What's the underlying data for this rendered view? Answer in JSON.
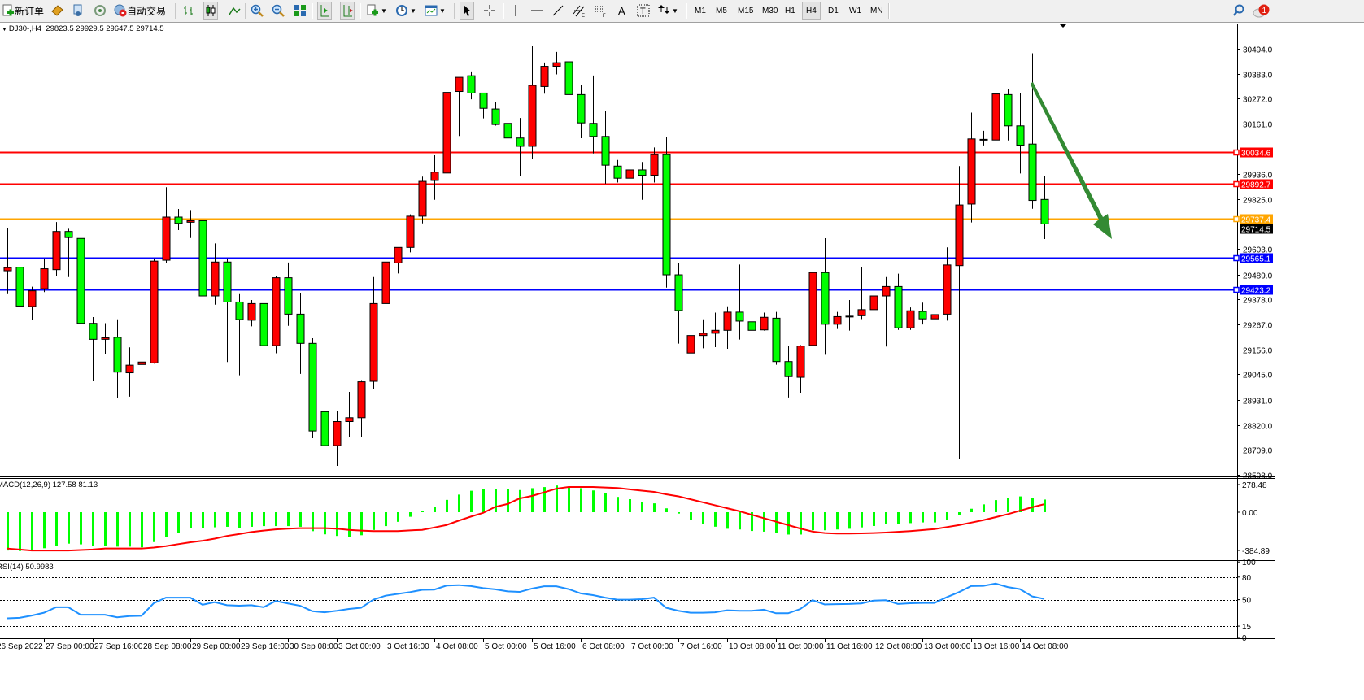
{
  "toolbar": {
    "new_order_label": "新订单",
    "auto_trading_label": "自动交易",
    "timeframes": [
      "M1",
      "M5",
      "M15",
      "M30",
      "H1",
      "H4",
      "D1",
      "W1",
      "MN"
    ],
    "active_timeframe": "H4",
    "notification_count": "1",
    "icons": [
      "new-order-icon",
      "market-watch-icon",
      "navigator-icon",
      "signals-icon",
      "auto-trading-icon",
      "bar-chart-icon",
      "candlestick-icon",
      "line-chart-icon",
      "zoom-in-icon",
      "zoom-out-icon",
      "tile-windows-icon",
      "auto-scroll-icon",
      "chart-shift-icon",
      "indicators-icon",
      "periods-icon",
      "templates-icon",
      "cursor-icon",
      "crosshair-icon",
      "vertical-line-icon",
      "horizontal-line-icon",
      "trendline-icon",
      "equidistant-channel-icon",
      "fibonacci-icon",
      "text-icon",
      "text-label-icon",
      "arrows-icon",
      "search-icon",
      "notification-icon"
    ]
  },
  "header": {
    "symbol": "DJ30-,H4",
    "ohlc": "29823.5 29929.5 29647.5 29714.5"
  },
  "indicators": {
    "macd_title": "MACD(12,26,9) 127.58 81.13",
    "rsi_title": "RSI(14) 50.9983"
  },
  "colors": {
    "bull": "#ff0000",
    "bear": "#00ff00",
    "macd_hist": "#00ff00",
    "macd_signal": "#ff0000",
    "rsi": "#1e90ff",
    "arrow": "#338a33"
  },
  "chart_data": [
    {
      "type": "candlestick",
      "symbol": "DJ30-",
      "timeframe": "H4",
      "ohlc_order": [
        "open",
        "high",
        "low",
        "close"
      ],
      "ylim": [
        28598.0,
        30494.0
      ],
      "y_ticks": [
        "30494.0",
        "30383.0",
        "30272.0",
        "30161.0",
        "29936.0",
        "29825.0",
        "29603.0",
        "29489.0",
        "29378.0",
        "29267.0",
        "29156.0",
        "29045.0",
        "28931.0",
        "28820.0",
        "28709.0",
        "28598.0"
      ],
      "time_labels": [
        "26 Sep 2022",
        "27 Sep 00:00",
        "27 Sep 16:00",
        "28 Sep 08:00",
        "29 Sep 00:00",
        "29 Sep 16:00",
        "30 Sep 08:00",
        "3 Oct 00:00",
        "3 Oct 16:00",
        "4 Oct 08:00",
        "5 Oct 00:00",
        "5 Oct 16:00",
        "6 Oct 08:00",
        "7 Oct 00:00",
        "7 Oct 16:00",
        "10 Oct 08:00",
        "11 Oct 00:00",
        "11 Oct 16:00",
        "12 Oct 08:00",
        "13 Oct 00:00",
        "13 Oct 16:00",
        "14 Oct 08:00"
      ],
      "levels": [
        {
          "label": "30034.6",
          "price": 30034.6,
          "color": "#ff0000"
        },
        {
          "label": "29892.7",
          "price": 29892.7,
          "color": "#ff0000"
        },
        {
          "label": "29737.4",
          "price": 29737.4,
          "color": "#ffa500"
        },
        {
          "label": "29565.1",
          "price": 29565.1,
          "color": "#0000ff"
        },
        {
          "label": "29423.2",
          "price": 29423.2,
          "color": "#0000ff"
        }
      ],
      "bid": {
        "label": "29714.5",
        "price": 29714.5,
        "color": "#000000"
      },
      "candles": [
        [
          29506,
          29696,
          29402,
          29520
        ],
        [
          29522,
          29534,
          29220,
          29349
        ],
        [
          29347,
          29435,
          29288,
          29417
        ],
        [
          29426,
          29561,
          29411,
          29515
        ],
        [
          29511,
          29723,
          29484,
          29681
        ],
        [
          29681,
          29693,
          29478,
          29654
        ],
        [
          29650,
          29723,
          29272,
          29272
        ],
        [
          29272,
          29300,
          29014,
          29201
        ],
        [
          29201,
          29273,
          29135,
          29208
        ],
        [
          29210,
          29290,
          28940,
          29055
        ],
        [
          29052,
          29165,
          28946,
          29086
        ],
        [
          29089,
          29273,
          28881,
          29100
        ],
        [
          29096,
          29561,
          29093,
          29549
        ],
        [
          29553,
          29878,
          29541,
          29745
        ],
        [
          29745,
          29781,
          29687,
          29717
        ],
        [
          29722,
          29776,
          29652,
          29729
        ],
        [
          29729,
          29776,
          29342,
          29394
        ],
        [
          29394,
          29628,
          29355,
          29545
        ],
        [
          29545,
          29561,
          29100,
          29367
        ],
        [
          29367,
          29402,
          29041,
          29289
        ],
        [
          29286,
          29376,
          29259,
          29360
        ],
        [
          29360,
          29370,
          29169,
          29173
        ],
        [
          29173,
          29484,
          29139,
          29475
        ],
        [
          29475,
          29543,
          29261,
          29313
        ],
        [
          29313,
          29408,
          29047,
          29183
        ],
        [
          29183,
          29206,
          28761,
          28793
        ],
        [
          28879,
          28893,
          28710,
          28728
        ],
        [
          28728,
          28882,
          28638,
          28835
        ],
        [
          28835,
          28967,
          28767,
          28852
        ],
        [
          28852,
          29016,
          28767,
          29012
        ],
        [
          29014,
          29478,
          28979,
          29360
        ],
        [
          29360,
          29696,
          29319,
          29545
        ],
        [
          29541,
          29610,
          29494,
          29610
        ],
        [
          29610,
          29757,
          29588,
          29749
        ],
        [
          29749,
          29925,
          29717,
          29904
        ],
        [
          29908,
          30020,
          29822,
          29945
        ],
        [
          29941,
          30341,
          29869,
          30300
        ],
        [
          30304,
          30367,
          30106,
          30367
        ],
        [
          30374,
          30393,
          30269,
          30297
        ],
        [
          30297,
          30297,
          30184,
          30229
        ],
        [
          30226,
          30257,
          30152,
          30157
        ],
        [
          30162,
          30178,
          30042,
          30097
        ],
        [
          30097,
          30186,
          29927,
          30060
        ],
        [
          30060,
          30507,
          30005,
          30331
        ],
        [
          30326,
          30433,
          30294,
          30416
        ],
        [
          30416,
          30480,
          30380,
          30432
        ],
        [
          30436,
          30471,
          30242,
          30290
        ],
        [
          30290,
          30331,
          30096,
          30164
        ],
        [
          30162,
          30375,
          30028,
          30104
        ],
        [
          30104,
          30217,
          29894,
          29976
        ],
        [
          29972,
          29999,
          29899,
          29918
        ],
        [
          29918,
          30024,
          29914,
          29955
        ],
        [
          29955,
          29990,
          29822,
          29931
        ],
        [
          29931,
          30055,
          29899,
          30023
        ],
        [
          30023,
          30102,
          29431,
          29488
        ],
        [
          29488,
          29540,
          29182,
          29329
        ],
        [
          29140,
          29237,
          29105,
          29218
        ],
        [
          29218,
          29290,
          29161,
          29228
        ],
        [
          29228,
          29320,
          29166,
          29241
        ],
        [
          29241,
          29348,
          29159,
          29322
        ],
        [
          29322,
          29534,
          29200,
          29282
        ],
        [
          29279,
          29398,
          29049,
          29241
        ],
        [
          29243,
          29320,
          29240,
          29299
        ],
        [
          29295,
          29323,
          29088,
          29102
        ],
        [
          29102,
          29172,
          28942,
          29035
        ],
        [
          29032,
          29175,
          28960,
          29171
        ],
        [
          29174,
          29554,
          29108,
          29498
        ],
        [
          29498,
          29651,
          29132,
          29268
        ],
        [
          29268,
          29323,
          29247,
          29302
        ],
        [
          29302,
          29376,
          29240,
          29304
        ],
        [
          29306,
          29523,
          29291,
          29333
        ],
        [
          29333,
          29500,
          29319,
          29394
        ],
        [
          29394,
          29478,
          29169,
          29436
        ],
        [
          29436,
          29493,
          29243,
          29252
        ],
        [
          29252,
          29343,
          29243,
          29328
        ],
        [
          29325,
          29364,
          29267,
          29292
        ],
        [
          29292,
          29340,
          29204,
          29311
        ],
        [
          29313,
          29610,
          29284,
          29532
        ],
        [
          29529,
          29972,
          28667,
          29799
        ],
        [
          29803,
          30210,
          29721,
          30093
        ],
        [
          30088,
          30129,
          30064,
          30091
        ],
        [
          30088,
          30329,
          30025,
          30293
        ],
        [
          30290,
          30314,
          30086,
          30151
        ],
        [
          30151,
          30298,
          29939,
          30065
        ],
        [
          30070,
          30474,
          29782,
          29819
        ],
        [
          29823.5,
          29929.5,
          29647.5,
          29714.5
        ]
      ]
    },
    {
      "type": "bar",
      "title": "MACD(12,26,9) 127.58 81.13",
      "ylim": [
        -384.89,
        278.48
      ],
      "y_ticks": [
        "278.48",
        "0.00",
        "-384.89"
      ],
      "series": [
        {
          "kind": "histogram",
          "values": [
            -386,
            -391,
            -382,
            -363,
            -336,
            -317,
            -324,
            -336,
            -336,
            -347,
            -347,
            -354,
            -301,
            -248,
            -205,
            -163,
            -163,
            -152,
            -147,
            -159,
            -147,
            -140,
            -140,
            -140,
            -147,
            -191,
            -223,
            -239,
            -248,
            -232,
            -179,
            -140,
            -97,
            -46,
            14,
            55,
            124,
            177,
            216,
            235,
            235,
            235,
            223,
            242,
            253,
            269,
            258,
            242,
            219,
            189,
            154,
            131,
            101,
            89,
            39,
            -14,
            -74,
            -117,
            -146,
            -167,
            -174,
            -189,
            -196,
            -210,
            -225,
            -225,
            -182,
            -182,
            -174,
            -167,
            -153,
            -139,
            -117,
            -117,
            -110,
            -103,
            -103,
            -74,
            -31,
            35,
            79,
            122,
            147,
            159,
            147,
            127.58
          ]
        },
        {
          "kind": "signal",
          "values": [
            -366,
            -376,
            -386,
            -386,
            -386,
            -386,
            -381,
            -376,
            -366,
            -366,
            -366,
            -366,
            -356,
            -342,
            -322,
            -303,
            -288,
            -266,
            -239,
            -220,
            -200,
            -185,
            -173,
            -166,
            -161,
            -161,
            -161,
            -166,
            -178,
            -185,
            -190,
            -190,
            -190,
            -183,
            -178,
            -154,
            -129,
            -85,
            -44,
            -7,
            54,
            83,
            139,
            164,
            200,
            237,
            254,
            254,
            254,
            249,
            244,
            230,
            217,
            205,
            180,
            160,
            130,
            100,
            70,
            40,
            10,
            -25,
            -60,
            -95,
            -130,
            -165,
            -195,
            -210,
            -215,
            -215,
            -213,
            -210,
            -205,
            -198,
            -190,
            -180,
            -170,
            -150,
            -130,
            -105,
            -80,
            -50,
            -20,
            15,
            50,
            81.13
          ]
        }
      ]
    },
    {
      "type": "line",
      "title": "RSI(14) 50.9983",
      "ylim": [
        0,
        100
      ],
      "y_ticks": [
        "100",
        "80",
        "50",
        "15",
        "0"
      ],
      "levels": [
        80,
        50,
        15
      ],
      "values": [
        25.3,
        26,
        29,
        32.7,
        40,
        40,
        30,
        30,
        30,
        26.7,
        28.3,
        28.7,
        45.3,
        52.7,
        52.7,
        52.7,
        43.3,
        46.7,
        42.7,
        42,
        42.7,
        40,
        48.3,
        45,
        42,
        34.7,
        33.3,
        35.3,
        37.7,
        39.3,
        50,
        55.3,
        57.7,
        60,
        63,
        63.3,
        68.7,
        69.3,
        68,
        65.3,
        63.7,
        61,
        60.3,
        64.7,
        67.7,
        67.7,
        64,
        58.3,
        56,
        52.7,
        50,
        50,
        50.7,
        52.7,
        39.3,
        35.3,
        32.7,
        32.7,
        33.3,
        36,
        35.3,
        35.3,
        36.7,
        32,
        32,
        37.7,
        49.3,
        43.7,
        44,
        44.3,
        45,
        48.7,
        49.3,
        44.3,
        45.3,
        45.7,
        45.7,
        53.3,
        60,
        68,
        68.3,
        71.3,
        66.7,
        64,
        54.3,
        51.0
      ]
    }
  ]
}
